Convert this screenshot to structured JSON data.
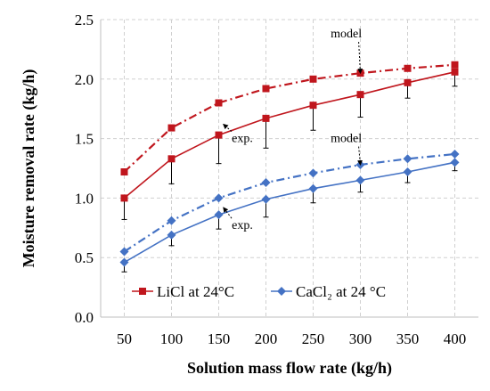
{
  "chart_data": {
    "type": "line",
    "xlabel": "Solution mass flow rate (kg/h)",
    "ylabel": "Moisture removal rate (kg/h)",
    "x": [
      50,
      100,
      150,
      200,
      250,
      300,
      350,
      400
    ],
    "xlim": [
      25,
      425
    ],
    "ylim": [
      0,
      2.5
    ],
    "yticks": [
      "0.0",
      "0.5",
      "1.0",
      "1.5",
      "2.0",
      "2.5"
    ],
    "xticks": [
      "50",
      "100",
      "150",
      "200",
      "250",
      "300",
      "350",
      "400"
    ],
    "grid": "dashed",
    "series": [
      {
        "name": "LiCl at 24°C",
        "kind": "exp.",
        "color": "#c0161d",
        "marker": "square",
        "line": "solid",
        "values": [
          1.0,
          1.33,
          1.53,
          1.67,
          1.78,
          1.87,
          1.97,
          2.06
        ],
        "error": [
          0.18,
          0.21,
          0.24,
          0.25,
          0.21,
          0.19,
          0.13,
          0.12
        ]
      },
      {
        "name": "",
        "kind": "model",
        "color": "#c0161d",
        "marker": "square",
        "line": "dashdot",
        "values": [
          1.22,
          1.59,
          1.8,
          1.92,
          2.0,
          2.05,
          2.09,
          2.12
        ]
      },
      {
        "name": "CaCl₂ at 24 °C",
        "kind": "exp.",
        "color": "#4472c4",
        "marker": "diamond",
        "line": "solid",
        "values": [
          0.46,
          0.69,
          0.86,
          0.99,
          1.08,
          1.15,
          1.22,
          1.3
        ],
        "error": [
          0.08,
          0.09,
          0.12,
          0.15,
          0.12,
          0.1,
          0.09,
          0.07
        ]
      },
      {
        "name": "",
        "kind": "model",
        "color": "#4472c4",
        "marker": "diamond",
        "line": "dashdot",
        "values": [
          0.55,
          0.81,
          1.0,
          1.13,
          1.21,
          1.28,
          1.33,
          1.37
        ]
      }
    ],
    "annotations": [
      {
        "text": "model",
        "x": 285,
        "y": 2.35,
        "arrow_to": [
          300,
          2.05
        ]
      },
      {
        "text": "exp.",
        "x": 175,
        "y": 1.47,
        "arrow_to": [
          155,
          1.62
        ]
      },
      {
        "text": "model",
        "x": 285,
        "y": 1.47,
        "arrow_to": [
          300,
          1.28
        ]
      },
      {
        "text": "exp.",
        "x": 175,
        "y": 0.74,
        "arrow_to": [
          155,
          0.92
        ]
      }
    ],
    "legend": "bottom-inside"
  }
}
